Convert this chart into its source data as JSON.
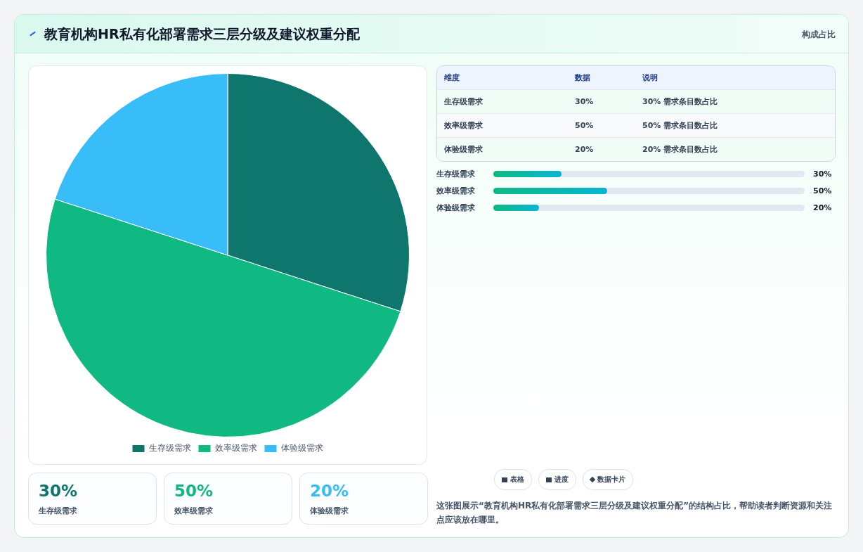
{
  "chart_data": {
    "type": "pie",
    "title": "教育机构HR私有化部署需求三层分级及建议权重分配",
    "subtitle": "构成占比",
    "categories": [
      "生存级需求",
      "效率级需求",
      "体验级需求"
    ],
    "values": [
      30,
      50,
      20
    ],
    "colors": [
      "#0f766e",
      "#10b981",
      "#38bdf8"
    ],
    "legend": "bottom",
    "annotations": [
      "维度",
      "数据",
      "说明",
      "30% 需求条目数占比",
      "50% 需求条目数占比",
      "20% 需求条目数占比",
      "表格",
      "进度",
      "数据卡片",
      "这张图展示“教育机构HR私有化部署需求三层分级及建议权重分配”的结构占比，帮助读者判断资源和关注点应该放在哪里。",
      "30%",
      "50%",
      "20%",
      "30%",
      "50%",
      "20%",
      "30%",
      "50%",
      "20%"
    ]
  }
}
